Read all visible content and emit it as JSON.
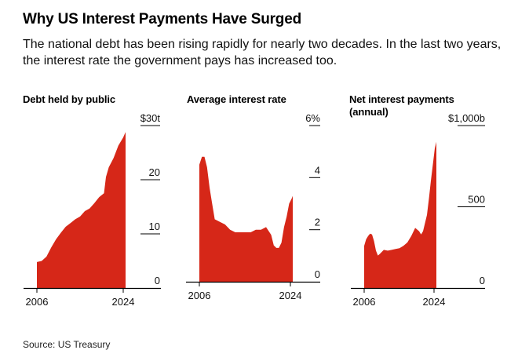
{
  "title": "Why US Interest Payments Have Surged",
  "subtitle": "The national debt has been rising rapidly for nearly two decades. In the last two years, the interest rate the government pays has increased too.",
  "source": "Source: US Treasury",
  "colors": {
    "fill": "#d62718",
    "axis": "#000000",
    "text": "#222222"
  },
  "chart_data": [
    {
      "type": "area",
      "title": "Debt held by public",
      "unit": "trillion $",
      "x": [
        2006,
        2007,
        2008,
        2009,
        2010,
        2011,
        2012,
        2013,
        2014,
        2015,
        2016,
        2017,
        2018,
        2019,
        2020,
        2020.4,
        2021,
        2022,
        2023,
        2024,
        2024.5
      ],
      "y": [
        4.8,
        5.0,
        5.8,
        7.5,
        9.0,
        10.2,
        11.3,
        12.0,
        12.7,
        13.2,
        14.2,
        14.7,
        15.7,
        16.8,
        17.5,
        20.5,
        22.3,
        24.0,
        26.3,
        27.8,
        28.8
      ],
      "xlim": [
        2006,
        2024.5
      ],
      "ylim": [
        0,
        30
      ],
      "yticks": [
        0,
        10,
        20,
        30
      ],
      "ytick_labels": [
        "0",
        "10",
        "20",
        "$30t"
      ],
      "xtick_labels": [
        "2006",
        "2024"
      ]
    },
    {
      "type": "area",
      "title": "Average interest rate",
      "unit": "percent",
      "x": [
        2006,
        2006.5,
        2007,
        2007.5,
        2008,
        2008.5,
        2009,
        2010,
        2011,
        2012,
        2013,
        2014,
        2015,
        2016,
        2017,
        2018,
        2019,
        2020,
        2020.5,
        2021,
        2021.5,
        2022,
        2022.5,
        2023,
        2023.5,
        2024,
        2024.2
      ],
      "y": [
        4.5,
        4.8,
        4.8,
        4.4,
        3.6,
        3.0,
        2.4,
        2.3,
        2.2,
        2.0,
        1.9,
        1.9,
        1.9,
        1.9,
        2.0,
        2.0,
        2.1,
        1.8,
        1.4,
        1.3,
        1.3,
        1.5,
        2.1,
        2.5,
        3.0,
        3.2,
        3.3
      ],
      "xlim": [
        2006,
        2024.2
      ],
      "ylim": [
        0,
        6
      ],
      "yticks": [
        0,
        2,
        4,
        6
      ],
      "ytick_labels": [
        "0",
        "2",
        "4",
        "6%"
      ],
      "xtick_labels": [
        "2006",
        "2024"
      ]
    },
    {
      "type": "area",
      "title": "Net interest payments (annual)",
      "title_lines": [
        "Net interest payments",
        "(annual)"
      ],
      "unit": "billion $",
      "x": [
        2006,
        2006.5,
        2007,
        2007.5,
        2008,
        2008.5,
        2009,
        2009.5,
        2010,
        2011,
        2012,
        2013,
        2014,
        2015,
        2016,
        2017,
        2018,
        2019,
        2020,
        2020.5,
        2021,
        2021.5,
        2022,
        2022.5,
        2023,
        2023.5,
        2024,
        2024.4
      ],
      "y": [
        260,
        300,
        320,
        335,
        330,
        290,
        230,
        200,
        210,
        235,
        230,
        235,
        240,
        245,
        260,
        280,
        320,
        370,
        350,
        330,
        350,
        400,
        450,
        550,
        660,
        760,
        860,
        900
      ],
      "xlim": [
        2006,
        2024.4
      ],
      "ylim": [
        0,
        1000
      ],
      "yticks": [
        0,
        500,
        1000
      ],
      "ytick_labels": [
        "0",
        "500",
        "$1,000b"
      ],
      "xtick_labels": [
        "2006",
        "2024"
      ]
    }
  ]
}
